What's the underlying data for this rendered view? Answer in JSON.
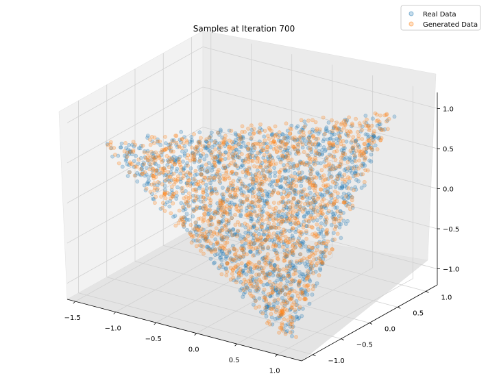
{
  "chart_data": {
    "type": "scatter",
    "projection": "3d",
    "title": "Samples at Iteration 700",
    "xlabel": "",
    "ylabel": "",
    "zlabel": "",
    "xlim": [
      -1.6,
      1.3
    ],
    "ylim": [
      -1.2,
      1.2
    ],
    "zlim": [
      -1.2,
      1.2
    ],
    "xticks": [
      "−1.5",
      "−1.0",
      "−0.5",
      "0.0",
      "0.5",
      "1.0"
    ],
    "xtick_values": [
      -1.5,
      -1.0,
      -0.5,
      0.0,
      0.5,
      1.0
    ],
    "yticks": [
      "−1.0",
      "−0.5",
      "0.0",
      "0.5",
      "1.0"
    ],
    "ytick_values": [
      -1.0,
      -0.5,
      0.0,
      0.5,
      1.0
    ],
    "zticks": [
      "−1.0",
      "−0.5",
      "0.0",
      "0.5",
      "1.0"
    ],
    "ztick_values": [
      -1.0,
      -0.5,
      0.0,
      0.5,
      1.0
    ],
    "grid": true,
    "legend": "top-right",
    "series": [
      {
        "name": "Real Data",
        "color": "#1f77b4",
        "alpha": 0.25,
        "distribution": "near-planar triangular sheet",
        "point_count": 1500
      },
      {
        "name": "Generated Data",
        "color": "#ff7f0e",
        "alpha": 0.25,
        "distribution": "near-planar triangular sheet",
        "point_count": 1500
      }
    ]
  }
}
